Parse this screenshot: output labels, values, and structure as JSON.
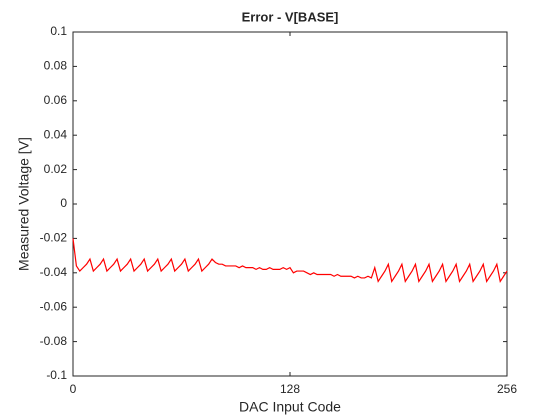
{
  "chart_data": {
    "type": "line",
    "title": "Error - V[BASE]",
    "x_label": "DAC Input Code",
    "y_label": "Measured Voltage [V]",
    "x": [
      0,
      2,
      4,
      6,
      8,
      10,
      12,
      14,
      16,
      18,
      20,
      22,
      24,
      26,
      28,
      30,
      32,
      34,
      36,
      38,
      40,
      42,
      44,
      46,
      48,
      50,
      52,
      54,
      56,
      58,
      60,
      62,
      64,
      66,
      68,
      70,
      72,
      74,
      76,
      78,
      80,
      82,
      84,
      86,
      88,
      90,
      92,
      94,
      96,
      98,
      100,
      102,
      104,
      106,
      108,
      110,
      112,
      114,
      116,
      118,
      120,
      122,
      124,
      126,
      128,
      130,
      132,
      134,
      136,
      138,
      140,
      142,
      144,
      146,
      148,
      150,
      152,
      154,
      156,
      158,
      160,
      162,
      164,
      166,
      168,
      170,
      172,
      174,
      176,
      178,
      180,
      182,
      184,
      186,
      188,
      190,
      192,
      194,
      196,
      198,
      200,
      202,
      204,
      206,
      208,
      210,
      212,
      214,
      216,
      218,
      220,
      222,
      224,
      226,
      228,
      230,
      232,
      234,
      236,
      238,
      240,
      242,
      244,
      246,
      248,
      250,
      252,
      254,
      256
    ],
    "series": [
      {
        "color": "#ff0000",
        "values": [
          -0.02,
          -0.036,
          -0.039,
          -0.037,
          -0.035,
          -0.032,
          -0.039,
          -0.037,
          -0.035,
          -0.032,
          -0.039,
          -0.037,
          -0.035,
          -0.032,
          -0.039,
          -0.037,
          -0.035,
          -0.032,
          -0.039,
          -0.037,
          -0.035,
          -0.032,
          -0.039,
          -0.037,
          -0.035,
          -0.032,
          -0.039,
          -0.037,
          -0.035,
          -0.032,
          -0.039,
          -0.037,
          -0.035,
          -0.032,
          -0.039,
          -0.037,
          -0.035,
          -0.032,
          -0.039,
          -0.037,
          -0.035,
          -0.032,
          -0.034,
          -0.035,
          -0.035,
          -0.036,
          -0.036,
          -0.036,
          -0.036,
          -0.037,
          -0.036,
          -0.037,
          -0.037,
          -0.037,
          -0.038,
          -0.037,
          -0.038,
          -0.038,
          -0.037,
          -0.038,
          -0.038,
          -0.038,
          -0.037,
          -0.038,
          -0.037,
          -0.04,
          -0.039,
          -0.039,
          -0.039,
          -0.04,
          -0.041,
          -0.04,
          -0.041,
          -0.041,
          -0.041,
          -0.041,
          -0.041,
          -0.042,
          -0.041,
          -0.042,
          -0.042,
          -0.042,
          -0.042,
          -0.043,
          -0.042,
          -0.043,
          -0.043,
          -0.042,
          -0.043,
          -0.037,
          -0.045,
          -0.042,
          -0.039,
          -0.035,
          -0.045,
          -0.042,
          -0.039,
          -0.035,
          -0.045,
          -0.042,
          -0.039,
          -0.035,
          -0.045,
          -0.042,
          -0.039,
          -0.035,
          -0.045,
          -0.042,
          -0.039,
          -0.035,
          -0.045,
          -0.042,
          -0.039,
          -0.035,
          -0.045,
          -0.042,
          -0.039,
          -0.035,
          -0.045,
          -0.042,
          -0.039,
          -0.035,
          -0.045,
          -0.042,
          -0.039,
          -0.035,
          -0.045,
          -0.042,
          -0.039
        ]
      }
    ],
    "xlim": [
      0,
      256
    ],
    "xticks": [
      0,
      128,
      256
    ],
    "ylim": [
      -0.1,
      0.1
    ],
    "yticks": [
      -0.1,
      -0.08,
      -0.06,
      -0.04,
      -0.02,
      0,
      0.02,
      0.04,
      0.06,
      0.08,
      0.1
    ]
  }
}
